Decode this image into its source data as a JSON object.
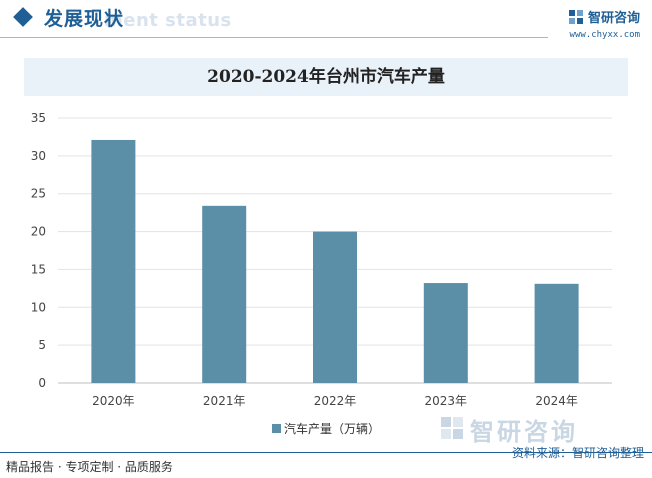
{
  "header": {
    "title": "发展现状",
    "subtitle": "ment status",
    "brand_name": "智研咨询",
    "brand_url": "www.chyxx.com"
  },
  "chart_data": {
    "type": "bar",
    "title": "2020-2024年台州市汽车产量",
    "categories": [
      "2020年",
      "2021年",
      "2022年",
      "2023年",
      "2024年"
    ],
    "series": [
      {
        "name": "汽车产量（万辆）",
        "values": [
          32.1,
          23.4,
          20.0,
          13.2,
          13.1
        ]
      }
    ],
    "ylim": [
      0,
      35
    ],
    "yticks": [
      0,
      5,
      10,
      15,
      20,
      25,
      30,
      35
    ],
    "grid": true,
    "legend_position": "bottom",
    "bar_color": "#5b8fa8",
    "xlabel": "",
    "ylabel": ""
  },
  "footer": {
    "left": "精品报告 · 专项定制 · 品质服务",
    "right": "资料来源：智研咨询整理",
    "watermark": "智研咨询"
  }
}
